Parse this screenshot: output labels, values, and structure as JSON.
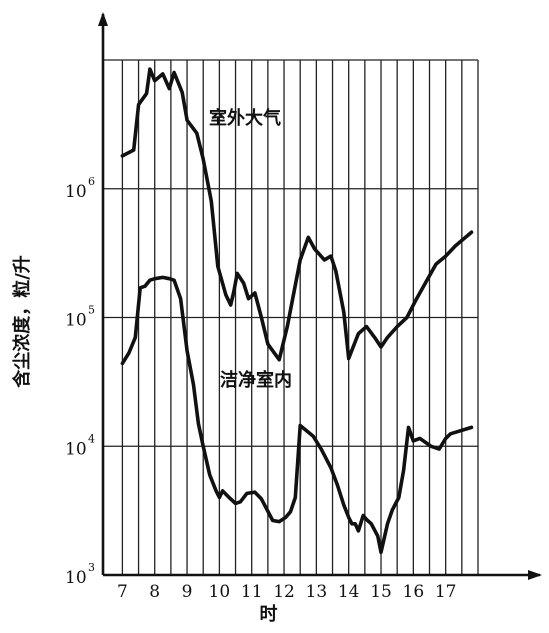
{
  "chart_data": {
    "type": "line",
    "xlabel": "时",
    "ylabel": "含尘浓度，粒/升",
    "yscale": "log",
    "ylim": [
      1000,
      10000000
    ],
    "xlim": [
      6.4,
      18.0
    ],
    "x_ticks": [
      7,
      8,
      9,
      10,
      11,
      12,
      13,
      14,
      15,
      16,
      17
    ],
    "y_ticks": [
      {
        "base": "10",
        "exp": "3"
      },
      {
        "base": "10",
        "exp": "4"
      },
      {
        "base": "10",
        "exp": "5"
      },
      {
        "base": "10",
        "exp": "6"
      }
    ],
    "grid": true,
    "series": [
      {
        "name": "室外大气",
        "x": [
          7.0,
          7.35,
          7.5,
          7.75,
          7.85,
          8.0,
          8.25,
          8.45,
          8.6,
          8.85,
          9.0,
          9.3,
          9.5,
          9.75,
          9.95,
          10.2,
          10.35,
          10.45,
          10.55,
          10.75,
          10.9,
          11.1,
          11.3,
          11.5,
          11.85,
          12.1,
          12.5,
          12.75,
          12.95,
          13.25,
          13.45,
          13.6,
          13.85,
          14.0,
          14.15,
          14.3,
          14.55,
          14.8,
          15.0,
          15.2,
          15.5,
          15.8,
          16.1,
          16.7,
          17.0,
          17.3,
          17.8
        ],
        "values": [
          1800000,
          2000000,
          4500000,
          5500000,
          8500000,
          6900000,
          7800000,
          6000000,
          8000000,
          5600000,
          3400000,
          2700000,
          1700000,
          800000,
          250000,
          150000,
          125000,
          160000,
          220000,
          185000,
          140000,
          155000,
          100000,
          62000,
          47000,
          85000,
          280000,
          420000,
          340000,
          280000,
          300000,
          230000,
          110000,
          48000,
          60000,
          75000,
          85000,
          70000,
          59000,
          70000,
          85000,
          100000,
          140000,
          260000,
          300000,
          360000,
          460000
        ]
      },
      {
        "name": "洁净室内",
        "x": [
          7.0,
          7.2,
          7.4,
          7.55,
          7.7,
          7.85,
          8.0,
          8.25,
          8.45,
          8.6,
          8.8,
          9.0,
          9.2,
          9.35,
          9.5,
          9.7,
          9.9,
          10.0,
          10.1,
          10.3,
          10.5,
          10.65,
          10.85,
          11.1,
          11.3,
          11.65,
          11.85,
          12.05,
          12.2,
          12.35,
          12.5,
          12.9,
          13.15,
          13.45,
          13.65,
          13.85,
          14.0,
          14.1,
          14.2,
          14.3,
          14.45,
          14.55,
          14.7,
          14.9,
          15.0,
          15.2,
          15.35,
          15.55,
          15.7,
          15.85,
          16.0,
          16.2,
          16.55,
          16.8,
          17.0,
          17.15,
          17.8
        ],
        "values": [
          44000,
          53000,
          70000,
          170000,
          175000,
          195000,
          200000,
          205000,
          200000,
          195000,
          140000,
          55000,
          30000,
          15000,
          10000,
          6000,
          4500,
          4000,
          4500,
          4000,
          3600,
          3700,
          4300,
          4400,
          3900,
          2650,
          2600,
          2800,
          3100,
          4000,
          14500,
          12000,
          9500,
          6800,
          5000,
          3500,
          2800,
          2500,
          2500,
          2200,
          2900,
          2700,
          2500,
          2000,
          1500,
          2500,
          3200,
          4000,
          6500,
          14000,
          11000,
          11500,
          10000,
          9500,
          11500,
          12500,
          14000
        ]
      }
    ]
  }
}
